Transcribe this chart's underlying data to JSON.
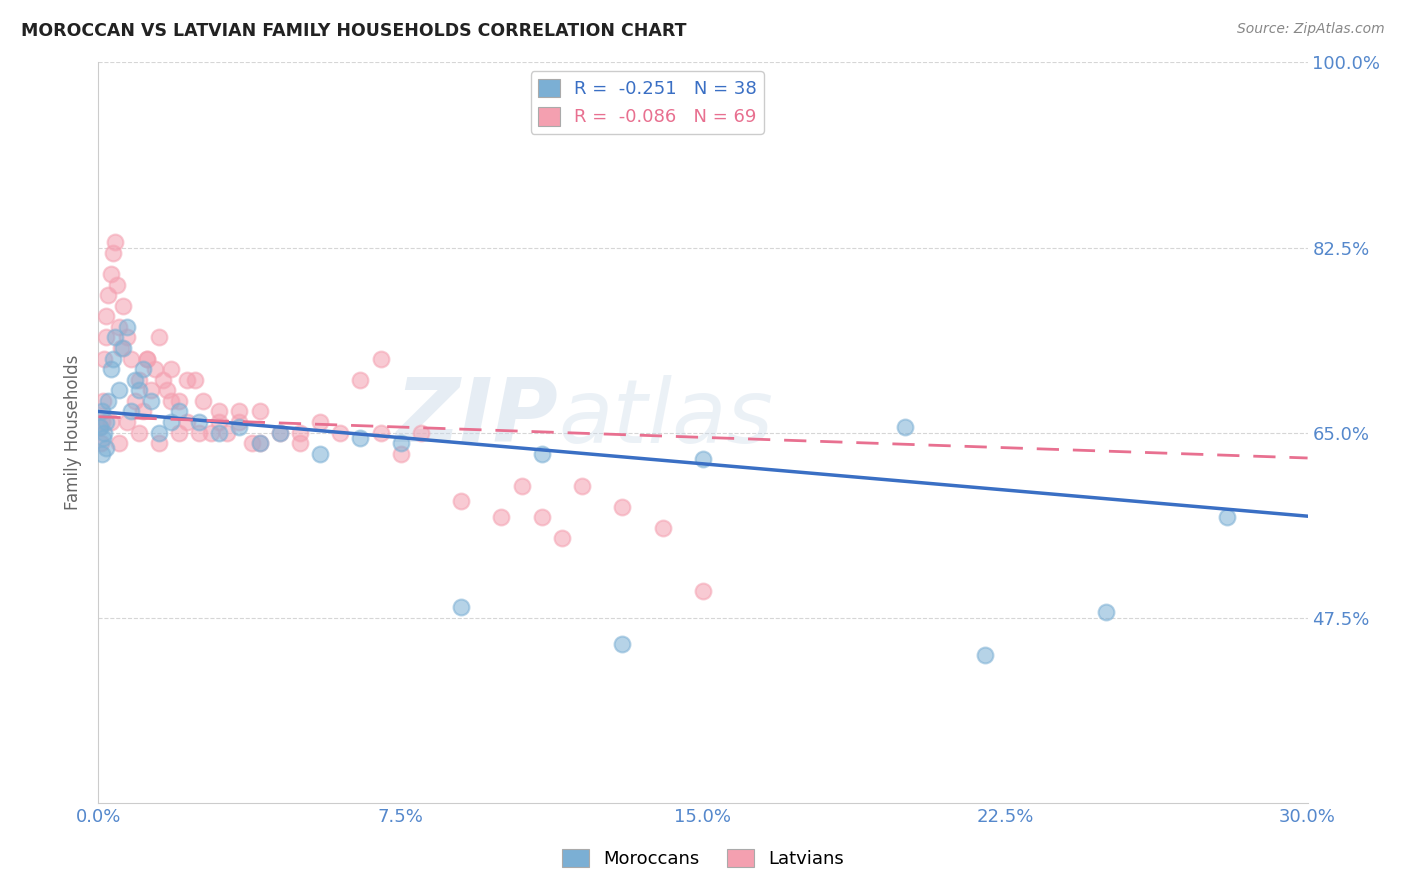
{
  "title": "MOROCCAN VS LATVIAN FAMILY HOUSEHOLDS CORRELATION CHART",
  "source": "Source: ZipAtlas.com",
  "ylabel": "Family Households",
  "watermark": "ZIPatlas",
  "moroccan_R": -0.251,
  "moroccan_N": 38,
  "latvian_R": -0.086,
  "latvian_N": 69,
  "x_min": 0.0,
  "x_max": 30.0,
  "y_min": 30.0,
  "y_max": 100.0,
  "y_ticks": [
    47.5,
    65.0,
    82.5,
    100.0
  ],
  "x_ticks": [
    0.0,
    7.5,
    15.0,
    22.5,
    30.0
  ],
  "blue_color": "#7BAFD4",
  "pink_color": "#F4A0B0",
  "blue_line_color": "#3A6FC4",
  "pink_line_color": "#E87090",
  "axis_color": "#5588CC",
  "grid_color": "#CCCCCC",
  "moroccan_x": [
    0.05,
    0.08,
    0.1,
    0.12,
    0.15,
    0.18,
    0.2,
    0.25,
    0.3,
    0.35,
    0.4,
    0.5,
    0.6,
    0.7,
    0.8,
    0.9,
    1.0,
    1.1,
    1.3,
    1.5,
    1.8,
    2.0,
    2.5,
    3.0,
    3.5,
    4.0,
    4.5,
    5.5,
    6.5,
    7.5,
    9.0,
    11.0,
    13.0,
    15.0,
    20.0,
    22.0,
    25.0,
    28.0
  ],
  "moroccan_y": [
    65.5,
    63.0,
    67.0,
    64.5,
    65.0,
    63.5,
    66.0,
    68.0,
    71.0,
    72.0,
    74.0,
    69.0,
    73.0,
    75.0,
    67.0,
    70.0,
    69.0,
    71.0,
    68.0,
    65.0,
    66.0,
    67.0,
    66.0,
    65.0,
    65.5,
    64.0,
    65.0,
    63.0,
    64.5,
    64.0,
    48.5,
    63.0,
    45.0,
    62.5,
    65.5,
    44.0,
    48.0,
    57.0
  ],
  "latvian_x": [
    0.05,
    0.07,
    0.1,
    0.12,
    0.15,
    0.18,
    0.2,
    0.25,
    0.3,
    0.35,
    0.4,
    0.45,
    0.5,
    0.55,
    0.6,
    0.7,
    0.8,
    0.9,
    1.0,
    1.1,
    1.2,
    1.3,
    1.4,
    1.5,
    1.6,
    1.7,
    1.8,
    2.0,
    2.2,
    2.4,
    2.6,
    2.8,
    3.0,
    3.2,
    3.5,
    3.8,
    4.0,
    4.5,
    5.0,
    5.5,
    6.0,
    6.5,
    7.0,
    7.5,
    8.0,
    9.0,
    10.0,
    10.5,
    11.0,
    11.5,
    12.0,
    13.0,
    14.0,
    15.0,
    0.3,
    0.5,
    0.7,
    1.0,
    1.5,
    2.0,
    2.5,
    3.0,
    4.0,
    5.0,
    1.2,
    1.8,
    2.2,
    3.5,
    7.0
  ],
  "latvian_y": [
    65.5,
    64.0,
    66.0,
    68.0,
    72.0,
    74.0,
    76.0,
    78.0,
    80.0,
    82.0,
    83.0,
    79.0,
    75.0,
    73.0,
    77.0,
    74.0,
    72.0,
    68.0,
    70.0,
    67.0,
    72.0,
    69.0,
    71.0,
    74.0,
    70.0,
    69.0,
    71.0,
    68.0,
    66.0,
    70.0,
    68.0,
    65.0,
    67.0,
    65.0,
    66.0,
    64.0,
    67.0,
    65.0,
    64.0,
    66.0,
    65.0,
    70.0,
    65.0,
    63.0,
    65.0,
    58.5,
    57.0,
    60.0,
    57.0,
    55.0,
    60.0,
    58.0,
    56.0,
    50.0,
    66.0,
    64.0,
    66.0,
    65.0,
    64.0,
    65.0,
    65.0,
    66.0,
    64.0,
    65.0,
    72.0,
    68.0,
    70.0,
    67.0,
    72.0
  ]
}
